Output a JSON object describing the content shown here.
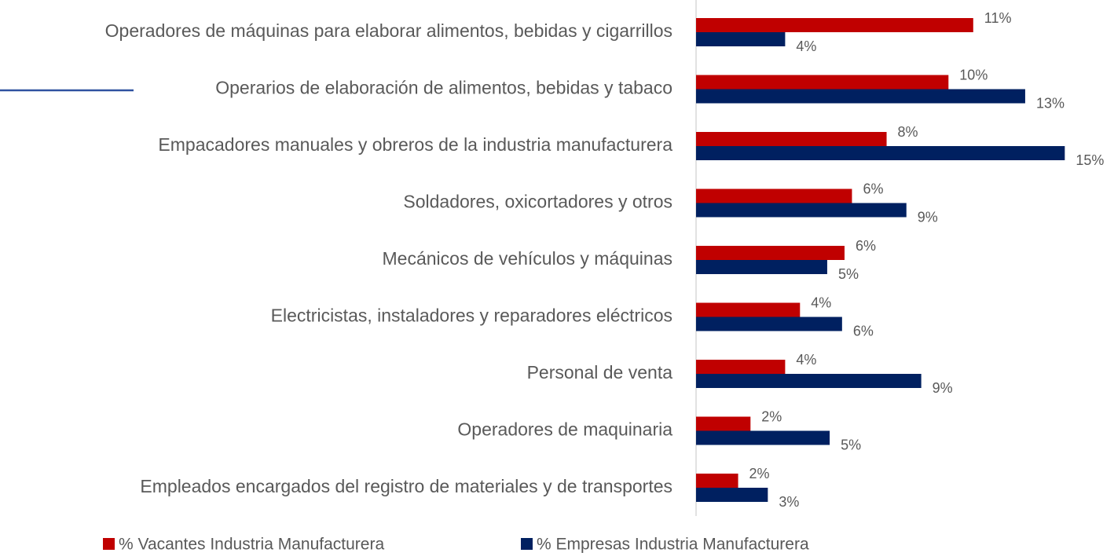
{
  "chart_data": {
    "type": "hbar",
    "categories": [
      "Operadores de máquinas para elaborar alimentos, bebidas y cigarrillos",
      "Operarios de elaboración de alimentos, bebidas y tabaco",
      "Empacadores manuales y obreros de la industria manufacturera",
      "Soldadores, oxicortadores y otros",
      "Mecánicos de vehículos y máquinas",
      "Electricistas, instaladores y reparadores eléctricos",
      "Personal de venta",
      "Operadores de maquinaria",
      "Empleados encargados del registro de materiales y de transportes"
    ],
    "series": [
      {
        "name": "% Vacantes Industria Manufacturera",
        "color": "#c00000",
        "values": [
          11.2,
          10.2,
          7.7,
          6.3,
          6.0,
          4.2,
          3.6,
          2.2,
          1.7
        ],
        "value_labels": [
          "11%",
          "10%",
          "8%",
          "6%",
          "6%",
          "4%",
          "4%",
          "2%",
          "2%"
        ]
      },
      {
        "name": "% Empresas Industria Manufacturera",
        "color": "#002060",
        "values": [
          3.6,
          13.3,
          14.9,
          8.5,
          5.3,
          5.9,
          9.1,
          5.4,
          2.9
        ],
        "value_labels": [
          "4%",
          "13%",
          "15%",
          "9%",
          "5%",
          "6%",
          "9%",
          "5%",
          "3%"
        ]
      }
    ],
    "xlim": [
      0,
      16
    ]
  }
}
